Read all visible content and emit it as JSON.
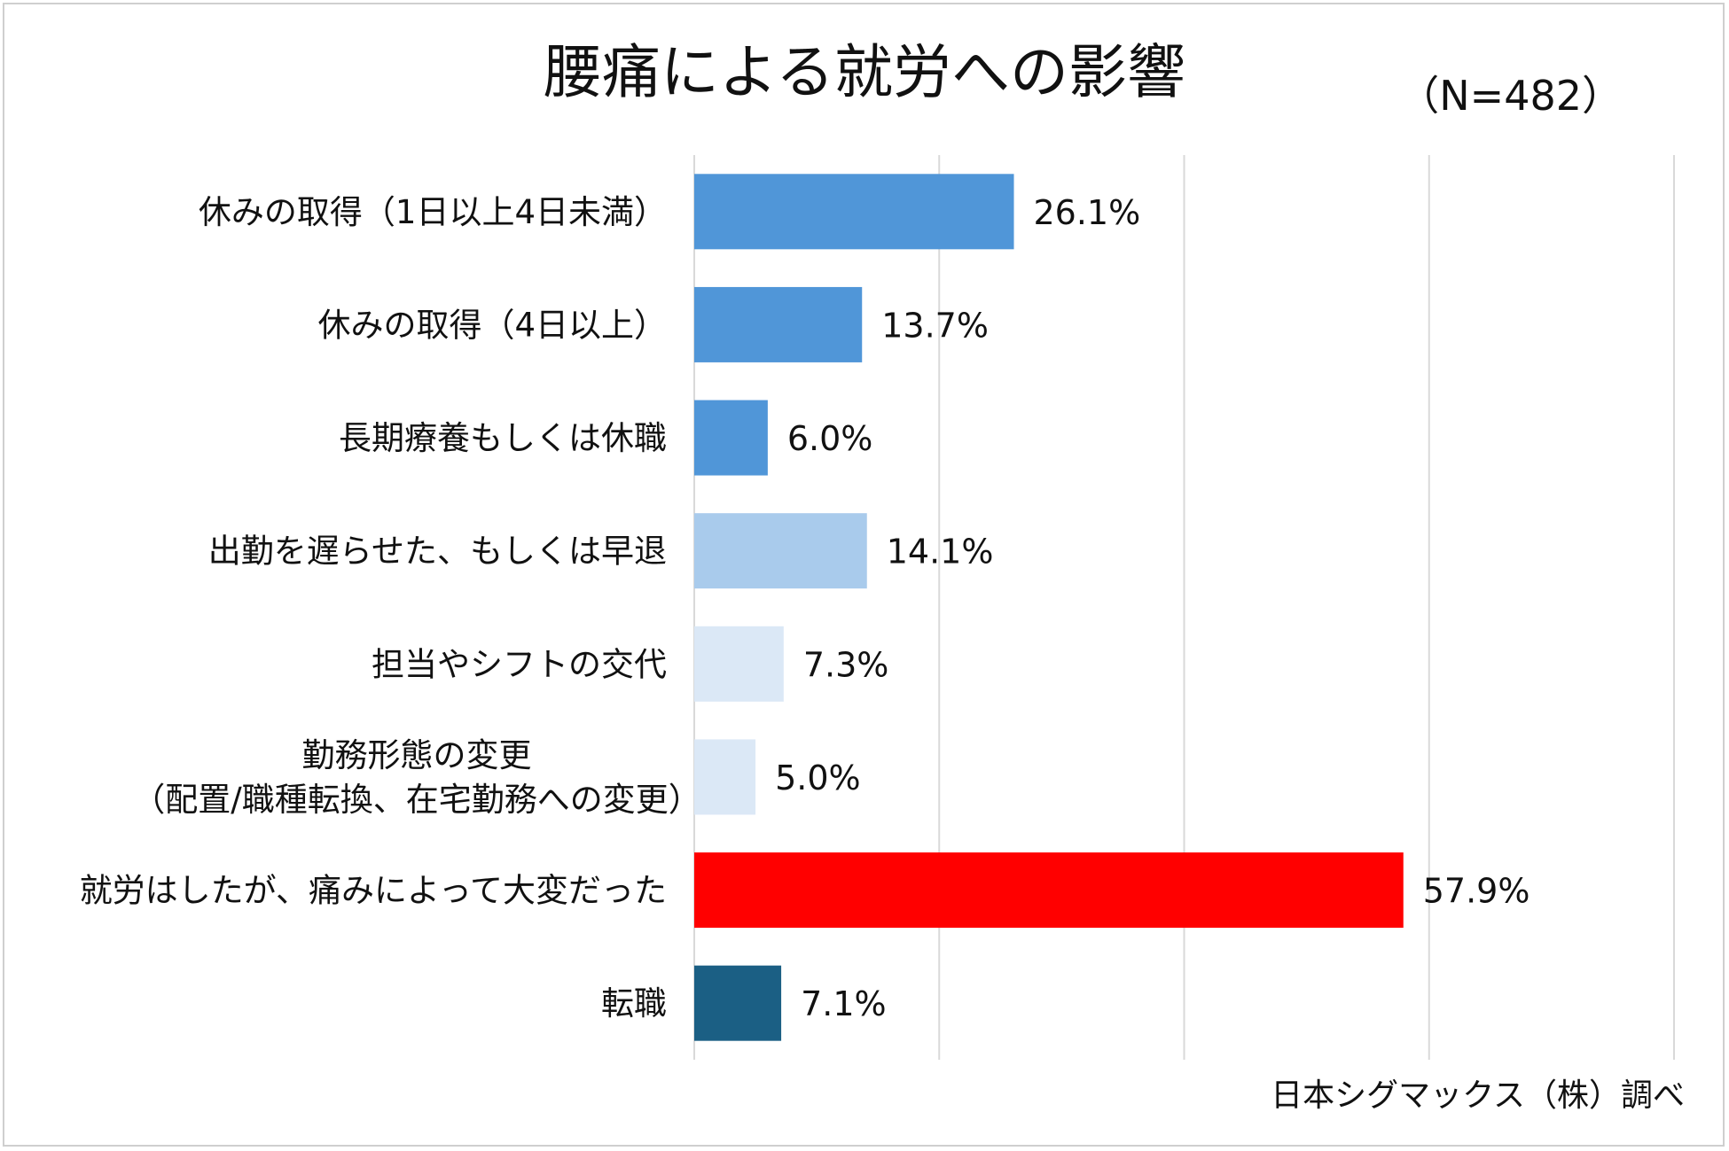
{
  "chart_data": {
    "type": "bar",
    "orientation": "horizontal",
    "title": "腰痛による就労への影響",
    "subtitle": "（N=482）",
    "source": "日本シグマックス（株）調べ",
    "categories": [
      [
        "休みの取得（1日以上4日未満）"
      ],
      [
        "休みの取得（4日以上）"
      ],
      [
        "長期療養もしくは休職"
      ],
      [
        "出勤を遅らせた、もしくは早退"
      ],
      [
        "担当やシフトの交代"
      ],
      [
        "勤務形態の変更",
        "（配置/職種転換、在宅勤務への変更）"
      ],
      [
        "就労はしたが、痛みによって大変だった"
      ],
      [
        "転職"
      ]
    ],
    "values": [
      26.1,
      13.7,
      6.0,
      14.1,
      7.3,
      5.0,
      57.9,
      7.1
    ],
    "value_labels": [
      "26.1%",
      "13.7%",
      "6.0%",
      "14.1%",
      "7.3%",
      "5.0%",
      "57.9%",
      "7.1%"
    ],
    "colors": [
      "#5096d8",
      "#5096d8",
      "#5096d8",
      "#a9cbec",
      "#dbe8f6",
      "#dbe8f6",
      "#ff0000",
      "#1b5f84"
    ],
    "xlim": [
      0,
      80
    ],
    "grid": true
  }
}
